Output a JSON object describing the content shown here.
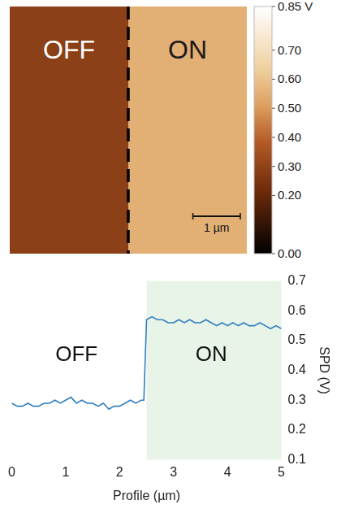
{
  "chart_data": [
    {
      "type": "heatmap",
      "xlim": [
        0,
        5
      ],
      "ylim": [
        0,
        5
      ],
      "tick_labels": false,
      "regions": [
        {
          "label": "OFF",
          "x": [
            0,
            2.5
          ],
          "value": 0.29
        },
        {
          "label": "ON",
          "x": [
            2.5,
            5
          ],
          "value": 0.55
        }
      ],
      "divider_x": 2.5,
      "scale_bar": {
        "length": 1,
        "label": "1 µm"
      },
      "colorbar": {
        "range": [
          0,
          0.85
        ],
        "ticks": [
          {
            "value": 0.85,
            "label": "0.85 V"
          },
          {
            "value": 0.7,
            "label": "0.70"
          },
          {
            "value": 0.6,
            "label": "0.60"
          },
          {
            "value": 0.5,
            "label": "0.50"
          },
          {
            "value": 0.4,
            "label": "0.40"
          },
          {
            "value": 0.3,
            "label": "0.30"
          },
          {
            "value": 0.2,
            "label": "0.20"
          },
          {
            "value": 0,
            "label": "0.00"
          }
        ]
      }
    },
    {
      "type": "line",
      "x_label": "Profile (µm)",
      "y_label": "SPD (V)",
      "x": [
        0,
        0.1,
        0.2,
        0.3,
        0.4,
        0.5,
        0.6,
        0.7,
        0.8,
        0.9,
        1.0,
        1.1,
        1.2,
        1.3,
        1.4,
        1.5,
        1.6,
        1.7,
        1.8,
        1.9,
        2.0,
        2.1,
        2.2,
        2.3,
        2.4,
        2.45,
        2.5,
        2.6,
        2.7,
        2.8,
        2.9,
        3.0,
        3.1,
        3.2,
        3.3,
        3.4,
        3.5,
        3.6,
        3.7,
        3.8,
        3.9,
        4.0,
        4.1,
        4.2,
        4.3,
        4.4,
        4.5,
        4.6,
        4.7,
        4.8,
        4.9,
        5.0
      ],
      "values": [
        0.29,
        0.28,
        0.28,
        0.29,
        0.28,
        0.28,
        0.29,
        0.29,
        0.3,
        0.29,
        0.3,
        0.31,
        0.29,
        0.3,
        0.29,
        0.29,
        0.28,
        0.29,
        0.27,
        0.28,
        0.28,
        0.29,
        0.3,
        0.29,
        0.3,
        0.3,
        0.57,
        0.58,
        0.57,
        0.57,
        0.56,
        0.56,
        0.57,
        0.56,
        0.57,
        0.56,
        0.56,
        0.57,
        0.56,
        0.55,
        0.56,
        0.55,
        0.56,
        0.55,
        0.56,
        0.55,
        0.55,
        0.56,
        0.55,
        0.54,
        0.55,
        0.54
      ],
      "color": "#2f7ebf",
      "xlim": [
        0,
        5
      ],
      "xticks": [
        0,
        1,
        2,
        3,
        4,
        5
      ],
      "ylim": [
        0.1,
        0.7
      ],
      "yticks": [
        0.1,
        0.2,
        0.3,
        0.4,
        0.5,
        0.6,
        0.7
      ],
      "grid": false,
      "shaded_region": {
        "x": [
          2.5,
          5
        ],
        "color": "#e9f4e9"
      },
      "annotations": [
        {
          "text": "OFF",
          "x": 1.2,
          "y": 0.45
        },
        {
          "text": "ON",
          "x": 3.7,
          "y": 0.45
        }
      ]
    }
  ]
}
